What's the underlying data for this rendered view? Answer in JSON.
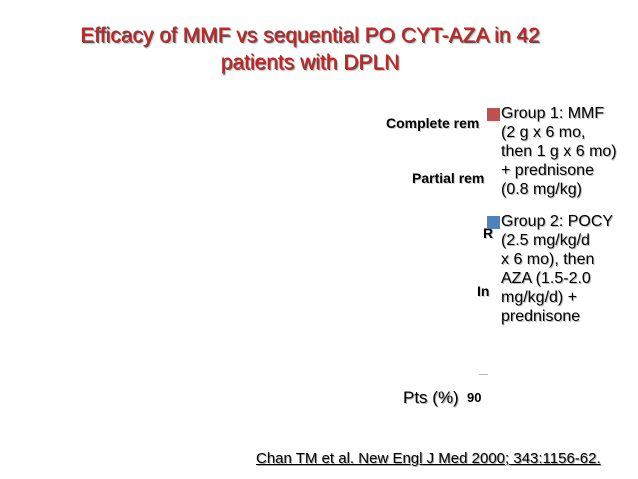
{
  "title": {
    "line1": "Efficacy of MMF vs sequential PO CYT-AZA in 42",
    "line2": "patients with DPLN"
  },
  "chart_data": {
    "type": "bar",
    "categories": [
      "Complete rem",
      "Partial rem",
      "R",
      "In"
    ],
    "series": [
      {
        "name": "Group 1: MMF\n(2 g x 6 mo,\nthen 1 g x 6 mo)\n+  prednisone\n(0.8 mg/kg)",
        "color": "#c0504d"
      },
      {
        "name": "Group 2: POCY\n(2.5 mg/kg/d\nx 6 mo), then\nAZA (1.5-2.0\nmg/kg/d) +\nprednisone",
        "color": "#4f81bd"
      }
    ],
    "xlabel": "Pts (%)",
    "x_ticks": [
      "90"
    ],
    "legend_position": "right"
  },
  "citation": "Chan TM et al. New Engl J Med 2000; 343:1156-62."
}
